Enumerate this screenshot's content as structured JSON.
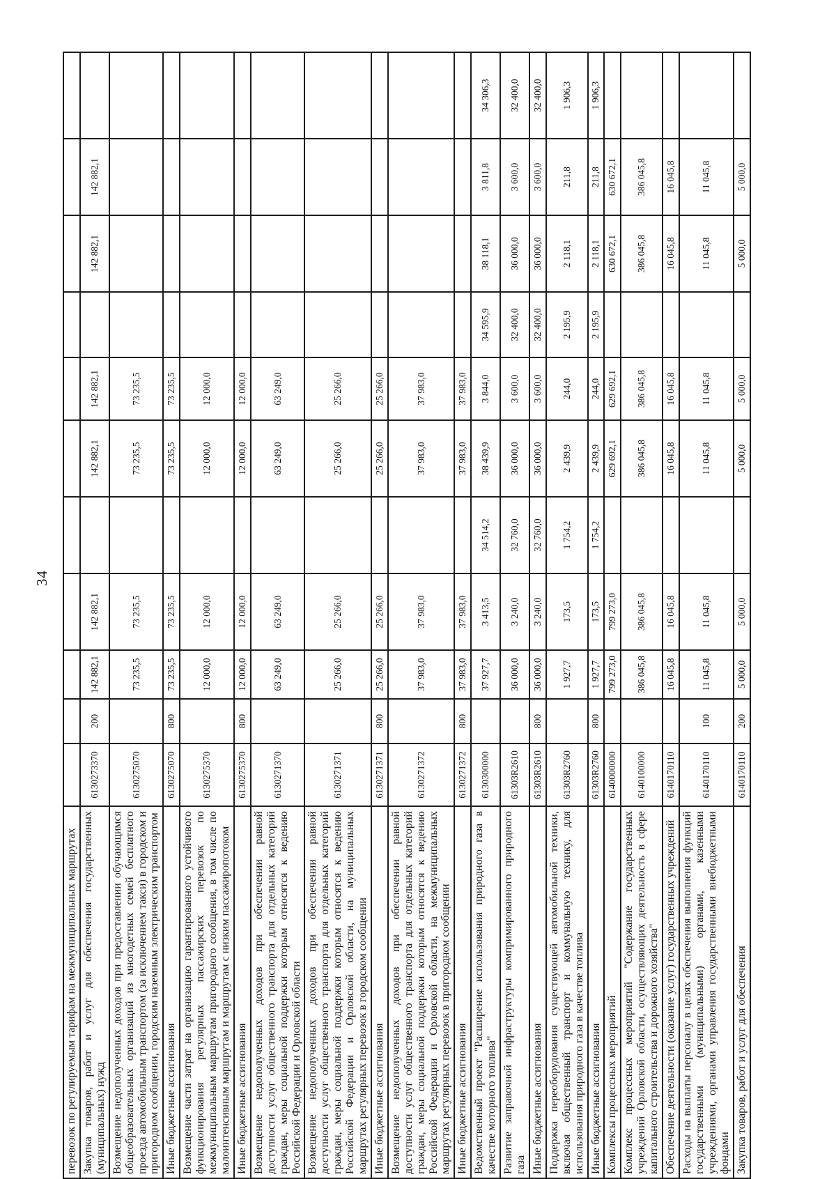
{
  "page": {
    "number": "34"
  },
  "colors": {
    "background": "#ffffff",
    "border": "#1d1d1d",
    "text": "#161616"
  },
  "table": {
    "rows": [
      {
        "name": "перевозок по регулируемым тарифам на межмуниципальных маршрутах",
        "code": "",
        "vid": "",
        "amounts": [
          "",
          "",
          "",
          "",
          "",
          "",
          "",
          "",
          ""
        ]
      },
      {
        "name": "Закупка товаров, работ и услуг для обеспечения государственных (муниципальных) нужд",
        "code": "6130273370",
        "vid": "200",
        "amounts": [
          "142 882,1",
          "142 882,1",
          "",
          "142 882,1",
          "142 882,1",
          "",
          "142 882,1",
          "142 882,1",
          ""
        ]
      },
      {
        "name": "Возмещение недополученных доходов при предоставлении обучающимся общеобразовательных организаций из многодетных семей бесплатного проезда автомобильным транспортом (за исключением такси) в городском и пригородном сообщении, городским наземным электрическим транспортом",
        "code": "6130275070",
        "vid": "",
        "amounts": [
          "73 235,5",
          "73 235,5",
          "",
          "73 235,5",
          "73 235,5",
          "",
          "",
          "",
          ""
        ]
      },
      {
        "name": "Иные бюджетные ассигнования",
        "code": "6130275070",
        "vid": "800",
        "amounts": [
          "73 235,5",
          "73 235,5",
          "",
          "73 235,5",
          "73 235,5",
          "",
          "",
          "",
          ""
        ]
      },
      {
        "name": "Возмещение части затрат на организацию гарантированного устойчивого функционирования регулярных пассажирских перевозок по межмуниципальным маршрутам пригородного сообщения, в том числе по малоинтенсивным маршрутам и маршрутам с низким пассажиропотоком",
        "code": "6130275370",
        "vid": "",
        "amounts": [
          "12 000,0",
          "12 000,0",
          "",
          "12 000,0",
          "12 000,0",
          "",
          "",
          "",
          ""
        ]
      },
      {
        "name": "Иные бюджетные ассигнования",
        "code": "6130275370",
        "vid": "800",
        "amounts": [
          "12 000,0",
          "12 000,0",
          "",
          "12 000,0",
          "12 000,0",
          "",
          "",
          "",
          ""
        ]
      },
      {
        "name": "Возмещение недополученных доходов при обеспечении равной доступности услуг общественного транспорта для отдельных категорий граждан, меры социальной поддержки которым относятся к ведению Российской Федерации и Орловской области",
        "code": "6130271370",
        "vid": "",
        "amounts": [
          "63 249,0",
          "63 249,0",
          "",
          "63 249,0",
          "63 249,0",
          "",
          "",
          "",
          ""
        ]
      },
      {
        "name": "Возмещение недополученных доходов при обеспечении равной доступности услуг общественного транспорта для отдельных категорий граждан, меры социальной поддержки которым относятся к ведению Российской Федерации и Орловской области, на муниципальных маршрутах регулярных перевозок в городском сообщении",
        "code": "6130271371",
        "vid": "",
        "amounts": [
          "25 266,0",
          "25 266,0",
          "",
          "25 266,0",
          "25 266,0",
          "",
          "",
          "",
          ""
        ]
      },
      {
        "name": "Иные бюджетные ассигнования",
        "code": "6130271371",
        "vid": "800",
        "amounts": [
          "25 266,0",
          "25 266,0",
          "",
          "25 266,0",
          "25 266,0",
          "",
          "",
          "",
          ""
        ]
      },
      {
        "name": "Возмещение недополученных доходов при обеспечении равной доступности услуг общественного транспорта для отдельных категорий граждан, меры социальной поддержки которым относятся к ведению Российской Федерации и Орловской области, на межмуниципальных маршрутах регулярных перевозок в пригородном сообщении",
        "code": "6130271372",
        "vid": "",
        "amounts": [
          "37 983,0",
          "37 983,0",
          "",
          "37 983,0",
          "37 983,0",
          "",
          "",
          "",
          ""
        ]
      },
      {
        "name": "Иные бюджетные ассигнования",
        "code": "6130271372",
        "vid": "800",
        "amounts": [
          "37 983,0",
          "37 983,0",
          "",
          "37 983,0",
          "37 983,0",
          "",
          "",
          "",
          ""
        ]
      },
      {
        "name": "Ведомственный проект \"Расширение использования природного газа в качестве моторного топлива\"",
        "code": "6130300000",
        "vid": "",
        "amounts": [
          "37 927,7",
          "3 413,5",
          "34 514,2",
          "38 439,9",
          "3 844,0",
          "34 595,9",
          "38 118,1",
          "3 811,8",
          "34 306,3"
        ]
      },
      {
        "name": "Развитие заправочной инфраструктуры компримированного природного газа",
        "code": "61303R2610",
        "vid": "",
        "amounts": [
          "36 000,0",
          "3 240,0",
          "32 760,0",
          "36 000,0",
          "3 600,0",
          "32 400,0",
          "36 000,0",
          "3 600,0",
          "32 400,0"
        ]
      },
      {
        "name": "Иные бюджетные ассигнования",
        "code": "61303R2610",
        "vid": "800",
        "amounts": [
          "36 000,0",
          "3 240,0",
          "32 760,0",
          "36 000,0",
          "3 600,0",
          "32 400,0",
          "36 000,0",
          "3 600,0",
          "32 400,0"
        ]
      },
      {
        "name": "Поддержка переоборудования существующей автомобильной техники, включая общественный транспорт и коммунальную технику, для использования природного газа в качестве топлива",
        "code": "61303R2760",
        "vid": "",
        "amounts": [
          "1 927,7",
          "173,5",
          "1 754,2",
          "2 439,9",
          "244,0",
          "2 195,9",
          "2 118,1",
          "211,8",
          "1 906,3"
        ]
      },
      {
        "name": "Иные бюджетные ассигнования",
        "code": "61303R2760",
        "vid": "800",
        "amounts": [
          "1 927,7",
          "173,5",
          "1 754,2",
          "2 439,9",
          "244,0",
          "2 195,9",
          "2 118,1",
          "211,8",
          "1 906,3"
        ]
      },
      {
        "name": "Комплексы процессных мероприятий",
        "code": "6140000000",
        "vid": "",
        "amounts": [
          "799 273,0",
          "799 273,0",
          "",
          "629 692,1",
          "629 692,1",
          "",
          "630 672,1",
          "630 672,1",
          ""
        ]
      },
      {
        "name": "Комплекс процессных мероприятий \"Содержание государственных учреждений Орловской области, осуществляющих деятельность в сфере капитального строительства и дорожного хозяйства\"",
        "code": "6140100000",
        "vid": "",
        "amounts": [
          "386 045,8",
          "386 045,8",
          "",
          "386 045,8",
          "386 045,8",
          "",
          "386 045,8",
          "386 045,8",
          ""
        ]
      },
      {
        "name": "Обеспечение деятельности (оказание услуг) государственных учреждений",
        "code": "6140170110",
        "vid": "",
        "amounts": [
          "16 045,8",
          "16 045,8",
          "",
          "16 045,8",
          "16 045,8",
          "",
          "16 045,8",
          "16 045,8",
          ""
        ]
      },
      {
        "name": "Расходы на выплаты персоналу в целях обеспечения выполнения функций государственными (муниципальными) органами, казенными учреждениями, органами управления государственными внебюджетными фондами",
        "code": "6140170110",
        "vid": "100",
        "amounts": [
          "11 045,8",
          "11 045,8",
          "",
          "11 045,8",
          "11 045,8",
          "",
          "11 045,8",
          "11 045,8",
          ""
        ]
      },
      {
        "name": "Закупка товаров, работ и услуг для обеспечения",
        "code": "6140170110",
        "vid": "200",
        "amounts": [
          "5 000,0",
          "5 000,0",
          "",
          "5 000,0",
          "5 000,0",
          "",
          "5 000,0",
          "5 000,0",
          ""
        ]
      }
    ]
  }
}
